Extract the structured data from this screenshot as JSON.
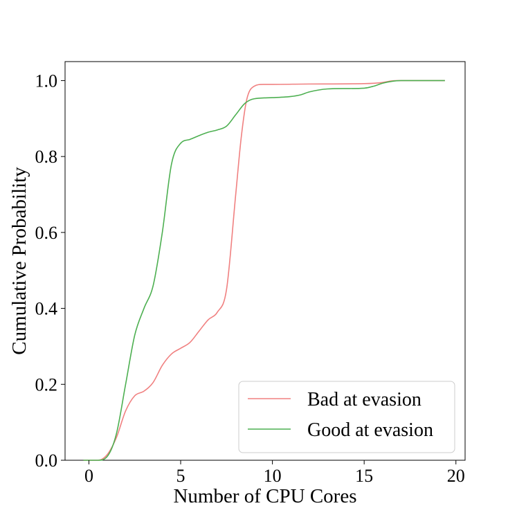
{
  "chart_data": {
    "type": "line",
    "title": "",
    "xlabel": "Number of CPU Cores",
    "ylabel": "Cumulative Probability",
    "xlim": [
      -1.3,
      20.5
    ],
    "ylim": [
      0.0,
      1.05
    ],
    "xticks": [
      0,
      5,
      10,
      15,
      20
    ],
    "xtick_labels": [
      "0",
      "5",
      "10",
      "15",
      "20"
    ],
    "yticks": [
      0.0,
      0.2,
      0.4,
      0.6,
      0.8,
      1.0
    ],
    "ytick_labels": [
      "0.0",
      "0.2",
      "0.4",
      "0.6",
      "0.8",
      "1.0"
    ],
    "grid": false,
    "legend_position": "bottom-right",
    "series": [
      {
        "name": "Bad at evasion",
        "color": "#f08080",
        "x": [
          -0.3,
          0.5,
          1.0,
          1.5,
          2.0,
          2.5,
          3.0,
          3.5,
          4.0,
          4.5,
          5.0,
          5.5,
          6.0,
          6.5,
          7.0,
          7.5,
          8.0,
          8.3,
          8.6,
          9.0,
          9.5,
          10.0,
          12.0,
          15.0,
          16.0,
          16.5,
          17.0,
          19.4
        ],
        "y": [
          0.0,
          0.0,
          0.015,
          0.06,
          0.13,
          0.17,
          0.182,
          0.205,
          0.25,
          0.28,
          0.295,
          0.31,
          0.34,
          0.37,
          0.39,
          0.45,
          0.7,
          0.85,
          0.95,
          0.985,
          0.99,
          0.99,
          0.991,
          0.992,
          0.995,
          0.999,
          1.0,
          1.0
        ]
      },
      {
        "name": "Good at evasion",
        "color": "#4caf50",
        "x": [
          -0.3,
          0.5,
          1.0,
          1.5,
          2.0,
          2.5,
          3.0,
          3.5,
          4.0,
          4.5,
          5.0,
          5.5,
          6.0,
          6.5,
          7.0,
          7.5,
          8.0,
          8.5,
          9.0,
          10.0,
          11.0,
          11.5,
          12.0,
          13.0,
          14.0,
          15.0,
          15.5,
          16.0,
          16.5,
          17.0,
          19.4
        ],
        "y": [
          0.0,
          0.0,
          0.01,
          0.07,
          0.2,
          0.33,
          0.4,
          0.46,
          0.6,
          0.78,
          0.835,
          0.845,
          0.855,
          0.864,
          0.87,
          0.88,
          0.91,
          0.94,
          0.952,
          0.955,
          0.958,
          0.962,
          0.97,
          0.978,
          0.979,
          0.98,
          0.985,
          0.993,
          0.998,
          1.0,
          1.0
        ]
      }
    ]
  }
}
